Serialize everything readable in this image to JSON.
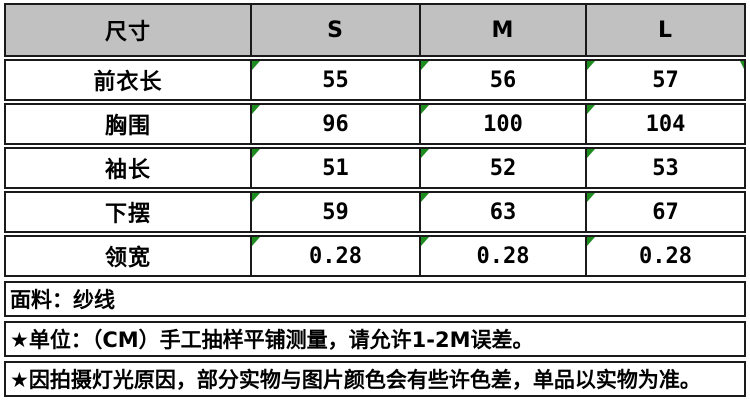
{
  "table": {
    "header": {
      "label": "尺寸",
      "sizes": [
        "S",
        "M",
        "L"
      ]
    },
    "rows": [
      {
        "label": "前衣长",
        "values": [
          "55",
          "56",
          "57"
        ]
      },
      {
        "label": "胸围",
        "values": [
          "96",
          "100",
          "104"
        ]
      },
      {
        "label": "袖长",
        "values": [
          "51",
          "52",
          "53"
        ]
      },
      {
        "label": "下摆",
        "values": [
          "59",
          "63",
          "67"
        ]
      },
      {
        "label": "领宽",
        "values": [
          "0.28",
          "0.28",
          "0.28"
        ]
      }
    ],
    "notes": [
      "面料：纱线",
      "★单位：（CM）手工抽样平铺测量，请允许1-2M误差。",
      "★因拍摄灯光原因，部分实物与图片颜色会有些许色差，单品以实物为准。"
    ],
    "colors": {
      "header_bg": "#c1c1c1",
      "border": "#1a1a1a",
      "flag_green": "#1e8c1e",
      "text": "#000000"
    }
  }
}
